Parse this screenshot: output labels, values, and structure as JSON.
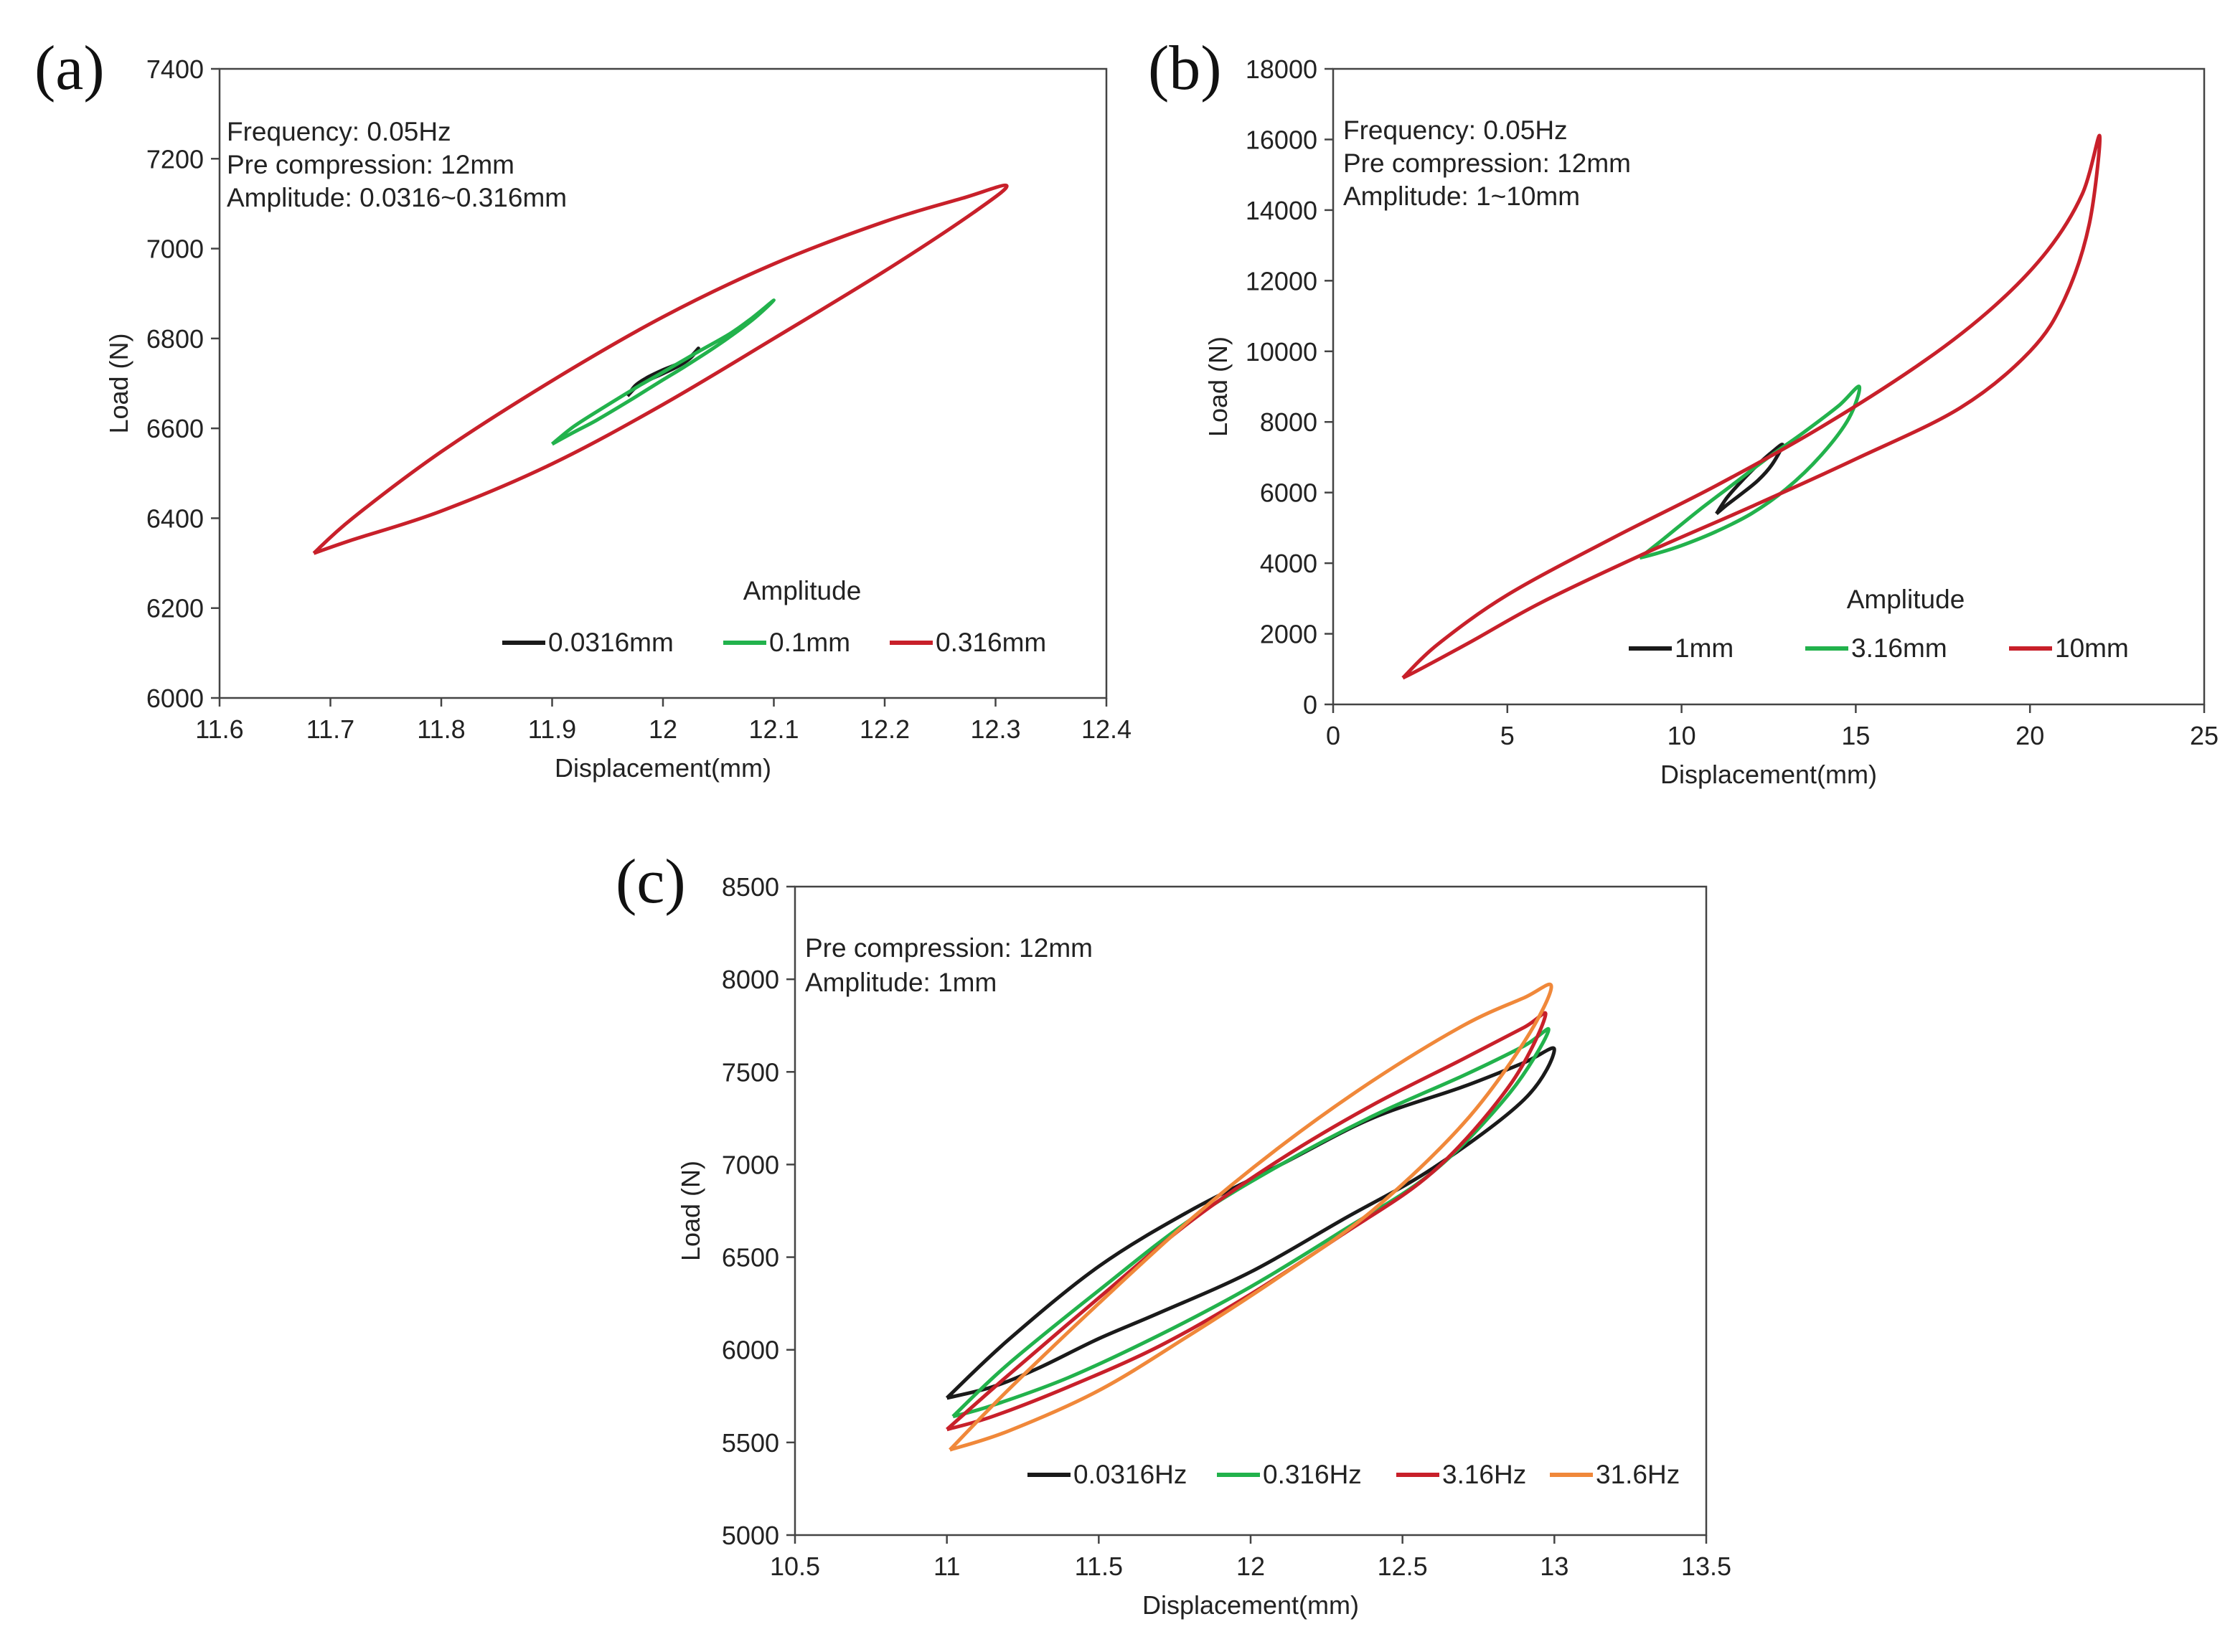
{
  "colors": {
    "black": "#1a1a1a",
    "green": "#22b24c",
    "red": "#c8202a",
    "orange": "#f0883a"
  },
  "chart_data": [
    {
      "id": "a",
      "type": "line",
      "panel_label": "(a)",
      "xlabel": "Displacement(mm)",
      "ylabel": "Load (N)",
      "xlim": [
        11.6,
        12.4
      ],
      "ylim": [
        6000,
        7400
      ],
      "xticks": [
        "11.6",
        "11.7",
        "11.8",
        "11.9",
        "12",
        "12.1",
        "12.2",
        "12.3",
        "12.4"
      ],
      "yticks": [
        "6000",
        "6200",
        "6400",
        "6600",
        "6800",
        "7000",
        "7200",
        "7400"
      ],
      "annotations": [
        "Frequency: 0.05Hz",
        "Pre compression: 12mm",
        "Amplitude: 0.0316~0.316mm"
      ],
      "legend_title": "Amplitude",
      "legend_position": "bottom-right",
      "series": [
        {
          "name": "0.0316mm",
          "color": "#1a1a1a",
          "x": [
            11.968,
            11.975,
            11.985,
            12.0,
            12.015,
            12.025,
            12.032,
            12.025,
            12.015,
            12.0,
            11.985,
            11.975,
            11.968
          ],
          "y": [
            6672,
            6690,
            6705,
            6722,
            6740,
            6757,
            6778,
            6760,
            6745,
            6730,
            6712,
            6695,
            6672
          ]
        },
        {
          "name": "0.1mm",
          "color": "#22b24c",
          "x": [
            11.9,
            11.92,
            11.95,
            11.98,
            12.0,
            12.03,
            12.06,
            12.08,
            12.1,
            12.08,
            12.05,
            12.02,
            12.0,
            11.97,
            11.94,
            11.92,
            11.9
          ],
          "y": [
            6565,
            6605,
            6652,
            6697,
            6725,
            6768,
            6810,
            6845,
            6885,
            6840,
            6786,
            6738,
            6708,
            6662,
            6618,
            6592,
            6565
          ]
        },
        {
          "name": "0.316mm",
          "color": "#c8202a",
          "x": [
            11.685,
            11.72,
            11.8,
            11.9,
            12.0,
            12.1,
            12.2,
            12.27,
            12.31,
            12.28,
            12.2,
            12.1,
            12.0,
            11.9,
            11.8,
            11.72,
            11.685
          ],
          "y": [
            6322,
            6400,
            6548,
            6706,
            6848,
            6966,
            7060,
            7112,
            7140,
            7080,
            6950,
            6800,
            6653,
            6521,
            6416,
            6352,
            6322
          ]
        }
      ]
    },
    {
      "id": "b",
      "type": "line",
      "panel_label": "(b)",
      "xlabel": "Displacement(mm)",
      "ylabel": "Load (N)",
      "xlim": [
        0,
        25
      ],
      "ylim": [
        0,
        18000
      ],
      "xticks": [
        "0",
        "5",
        "10",
        "15",
        "20",
        "25"
      ],
      "yticks": [
        "0",
        "2000",
        "4000",
        "6000",
        "8000",
        "10000",
        "12000",
        "14000",
        "16000",
        "18000"
      ],
      "annotations": [
        "Frequency: 0.05Hz",
        "Pre compression: 12mm",
        "Amplitude: 1~10mm"
      ],
      "legend_title": "Amplitude",
      "legend_position": "bottom-right",
      "series": [
        {
          "name": "1mm",
          "color": "#1a1a1a",
          "x": [
            11.0,
            11.3,
            11.7,
            12.2,
            12.6,
            12.9,
            12.6,
            12.2,
            11.7,
            11.3,
            11.0
          ],
          "y": [
            5400,
            5850,
            6300,
            6800,
            7150,
            7350,
            6800,
            6350,
            5950,
            5650,
            5400
          ]
        },
        {
          "name": "3.16mm",
          "color": "#22b24c",
          "x": [
            8.8,
            9.5,
            10.5,
            11.5,
            12.5,
            13.5,
            14.5,
            15.1,
            14.8,
            14.0,
            13.0,
            12.0,
            11.0,
            10.0,
            9.3,
            8.8
          ],
          "y": [
            4150,
            4700,
            5500,
            6250,
            7000,
            7700,
            8450,
            9000,
            8100,
            7050,
            6100,
            5400,
            4900,
            4500,
            4280,
            4150
          ]
        },
        {
          "name": "10mm",
          "color": "#c8202a",
          "x": [
            2.0,
            3.0,
            5.0,
            8.0,
            11.0,
            14.0,
            17.0,
            19.0,
            20.5,
            21.5,
            22.0,
            21.7,
            21.0,
            20.0,
            18.0,
            15.0,
            12.0,
            9.0,
            6.0,
            4.0,
            2.5,
            2.0
          ],
          "y": [
            750,
            1700,
            3100,
            4700,
            6200,
            7850,
            9750,
            11300,
            12850,
            14450,
            16100,
            13600,
            11500,
            10000,
            8400,
            6950,
            5600,
            4300,
            2900,
            1800,
            1000,
            750
          ]
        }
      ]
    },
    {
      "id": "c",
      "type": "line",
      "panel_label": "(c)",
      "xlabel": "Displacement(mm)",
      "ylabel": "Load (N)",
      "xlim": [
        10.5,
        13.5
      ],
      "ylim": [
        5000,
        8500
      ],
      "xticks": [
        "10.5",
        "11",
        "11.5",
        "12",
        "12.5",
        "13",
        "13.5"
      ],
      "yticks": [
        "5000",
        "5500",
        "6000",
        "6500",
        "7000",
        "7500",
        "8000",
        "8500"
      ],
      "annotations": [
        "Pre compression: 12mm",
        "Amplitude: 1mm"
      ],
      "legend_title": "",
      "legend_position": "bottom",
      "series": [
        {
          "name": "0.0316Hz",
          "color": "#1a1a1a",
          "x": [
            11.0,
            11.2,
            11.5,
            11.8,
            12.1,
            12.4,
            12.7,
            12.9,
            13.0,
            12.9,
            12.6,
            12.3,
            12.0,
            11.7,
            11.5,
            11.3,
            11.15,
            11.0
          ],
          "y": [
            5740,
            6050,
            6450,
            6750,
            7000,
            7250,
            7420,
            7550,
            7620,
            7350,
            6980,
            6700,
            6420,
            6200,
            6060,
            5900,
            5800,
            5740
          ]
        },
        {
          "name": "0.316Hz",
          "color": "#22b24c",
          "x": [
            11.02,
            11.2,
            11.5,
            11.8,
            12.1,
            12.4,
            12.7,
            12.9,
            12.98,
            12.85,
            12.6,
            12.3,
            12.0,
            11.7,
            11.4,
            11.15,
            11.02
          ],
          "y": [
            5640,
            5920,
            6320,
            6700,
            7000,
            7260,
            7480,
            7640,
            7720,
            7380,
            6960,
            6640,
            6340,
            6080,
            5850,
            5700,
            5640
          ]
        },
        {
          "name": "3.16Hz",
          "color": "#c8202a",
          "x": [
            11.0,
            11.2,
            11.5,
            11.8,
            12.1,
            12.4,
            12.7,
            12.9,
            12.97,
            12.85,
            12.6,
            12.3,
            12.0,
            11.7,
            11.4,
            11.15,
            11.0
          ],
          "y": [
            5570,
            5860,
            6280,
            6690,
            7030,
            7320,
            7570,
            7740,
            7800,
            7420,
            6960,
            6620,
            6300,
            6020,
            5800,
            5640,
            5570
          ]
        },
        {
          "name": "31.6Hz",
          "color": "#f0883a",
          "x": [
            11.01,
            11.2,
            11.5,
            11.8,
            12.1,
            12.4,
            12.7,
            12.9,
            12.99,
            12.9,
            12.7,
            12.4,
            12.1,
            11.8,
            11.5,
            11.2,
            11.01
          ],
          "y": [
            5460,
            5780,
            6250,
            6700,
            7100,
            7450,
            7750,
            7900,
            7960,
            7660,
            7220,
            6750,
            6400,
            6080,
            5780,
            5560,
            5460
          ]
        }
      ]
    }
  ]
}
